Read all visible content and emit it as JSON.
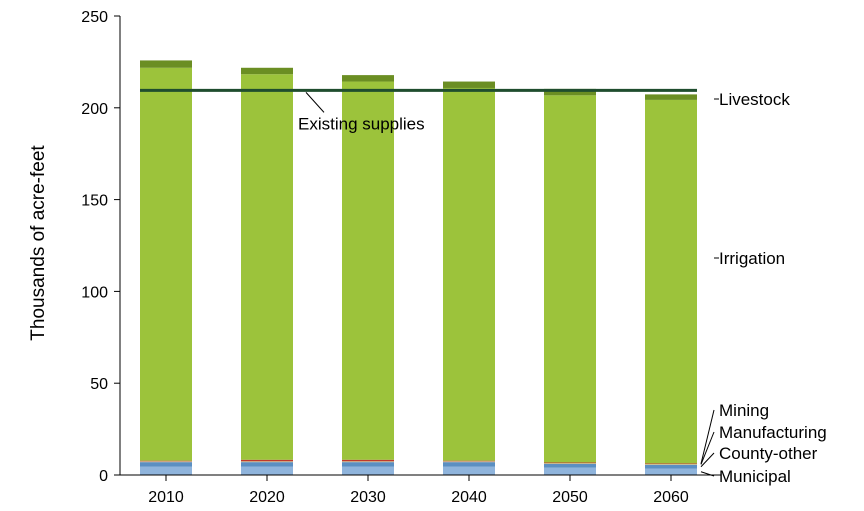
{
  "chart_data": {
    "type": "bar",
    "stacked": true,
    "title": "",
    "xlabel": "",
    "ylabel": "Thousands of acre-feet",
    "categories": [
      "2010",
      "2020",
      "2030",
      "2040",
      "2050",
      "2060"
    ],
    "ylim": [
      0,
      250
    ],
    "yticks": [
      0,
      50,
      100,
      150,
      200,
      250
    ],
    "grid": false,
    "legend": "none",
    "series": [
      {
        "name": "Municipal",
        "color": "#8fb4dc",
        "values": [
          4.5,
          4.5,
          4.5,
          4.5,
          4.0,
          3.5
        ]
      },
      {
        "name": "County-other",
        "color": "#5b8fc2",
        "values": [
          2.5,
          2.5,
          2.5,
          2.5,
          2.0,
          2.0
        ]
      },
      {
        "name": "Manufacturing",
        "color": "#c8b98e",
        "values": [
          0.5,
          0.5,
          0.5,
          0.5,
          0.5,
          0.5
        ]
      },
      {
        "name": "Mining",
        "color": "#c0392b",
        "values": [
          0.3,
          0.8,
          0.8,
          0.3,
          0.3,
          0.3
        ]
      },
      {
        "name": "Irrigation",
        "color": "#9cc33b",
        "values": [
          214,
          210,
          206,
          203,
          200,
          198
        ]
      },
      {
        "name": "Livestock",
        "color": "#6b8e23",
        "values": [
          4,
          3.5,
          3.5,
          3.5,
          3.5,
          3
        ]
      }
    ],
    "reference_lines": [
      {
        "name": "Existing supplies",
        "value": 209.5,
        "color": "#1f4d2e",
        "from_category": "2010",
        "to_category": "2060"
      }
    ]
  }
}
